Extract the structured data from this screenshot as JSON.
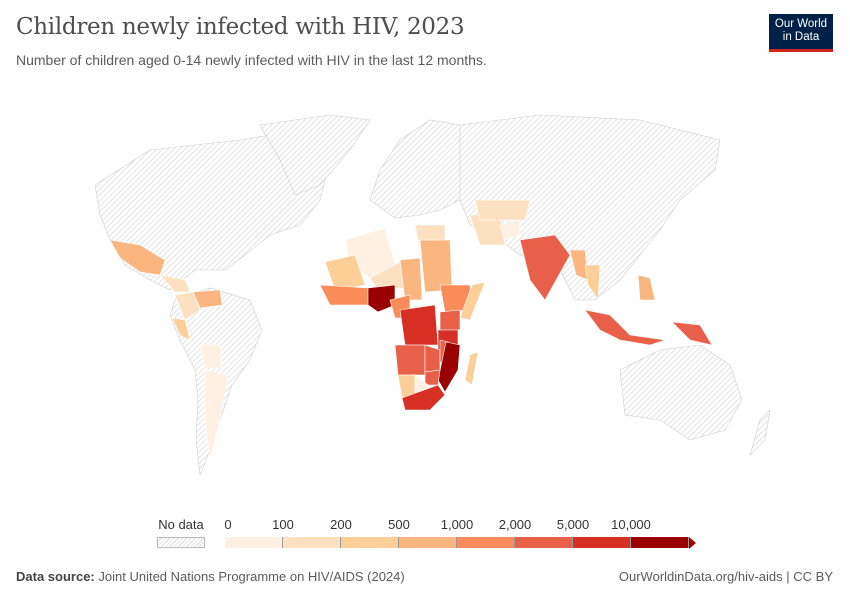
{
  "header": {
    "title": "Children newly infected with HIV, 2023",
    "subtitle": "Number of children aged 0-14 newly infected with HIV in the last 12 months.",
    "logo_text": "Our World in Data",
    "logo_line1": "Our World",
    "logo_line2": "in Data"
  },
  "chart_data": {
    "type": "choropleth",
    "title": "Children newly infected with HIV, 2023",
    "no_data_color": "#e6e6e6",
    "legend": {
      "no_data_label": "No data",
      "tick_labels": [
        "0",
        "100",
        "200",
        "500",
        "1,000",
        "2,000",
        "5,000",
        "10,000"
      ],
      "bins": [
        {
          "range": "0-100",
          "color": "#fef0e2"
        },
        {
          "range": "100-200",
          "color": "#fde0c0"
        },
        {
          "range": "200-500",
          "color": "#fdcf98"
        },
        {
          "range": "500-1,000",
          "color": "#fbb57f"
        },
        {
          "range": "1,000-2,000",
          "color": "#f98c58"
        },
        {
          "range": "2,000-5,000",
          "color": "#e8604a"
        },
        {
          "range": "5,000-10,000",
          "color": "#d63024"
        },
        {
          "range": ">10,000",
          "color": "#9b0000"
        }
      ]
    },
    "regions": [
      {
        "name": "Mexico",
        "bin": 3
      },
      {
        "name": "Central America",
        "bin": 1
      },
      {
        "name": "Venezuela",
        "bin": 3
      },
      {
        "name": "Colombia",
        "bin": 1
      },
      {
        "name": "Peru",
        "bin": 2
      },
      {
        "name": "Bolivia",
        "bin": 0
      },
      {
        "name": "Argentina",
        "bin": 0
      },
      {
        "name": "Algeria",
        "bin": 0
      },
      {
        "name": "Mali",
        "bin": 2
      },
      {
        "name": "Niger",
        "bin": 1
      },
      {
        "name": "Chad",
        "bin": 3
      },
      {
        "name": "Sudan",
        "bin": 3
      },
      {
        "name": "Egypt",
        "bin": 1
      },
      {
        "name": "West Africa",
        "bin": 4
      },
      {
        "name": "Nigeria",
        "bin": 7
      },
      {
        "name": "Cameroon",
        "bin": 4
      },
      {
        "name": "Ethiopia",
        "bin": 4
      },
      {
        "name": "Somalia",
        "bin": 2
      },
      {
        "name": "Kenya",
        "bin": 5
      },
      {
        "name": "DR Congo",
        "bin": 6
      },
      {
        "name": "Tanzania",
        "bin": 6
      },
      {
        "name": "Angola",
        "bin": 5
      },
      {
        "name": "Zambia",
        "bin": 5
      },
      {
        "name": "Malawi",
        "bin": 5
      },
      {
        "name": "Mozambique",
        "bin": 7
      },
      {
        "name": "Zimbabwe",
        "bin": 5
      },
      {
        "name": "Namibia",
        "bin": 2
      },
      {
        "name": "Botswana",
        "bin": 0
      },
      {
        "name": "South Africa",
        "bin": 6
      },
      {
        "name": "Madagascar",
        "bin": 2
      },
      {
        "name": "Iran",
        "bin": 1
      },
      {
        "name": "Afghanistan",
        "bin": 0
      },
      {
        "name": "Kazakhstan",
        "bin": 1
      },
      {
        "name": "India",
        "bin": 5
      },
      {
        "name": "Myanmar",
        "bin": 3
      },
      {
        "name": "Thailand",
        "bin": 2
      },
      {
        "name": "Philippines",
        "bin": 3
      },
      {
        "name": "Indonesia",
        "bin": 5
      },
      {
        "name": "Papua New Guinea",
        "bin": 5
      },
      {
        "name": "Australia",
        "bin": -1
      }
    ]
  },
  "footer": {
    "source_label": "Data source:",
    "source_text": "Joint United Nations Programme on HIV/AIDS (2024)",
    "url_license": "OurWorldinData.org/hiv-aids | CC BY"
  }
}
